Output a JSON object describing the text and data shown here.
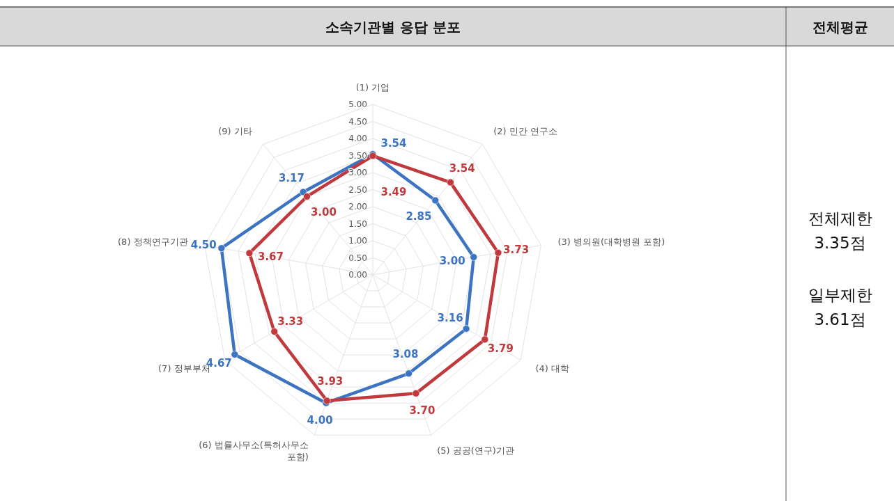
{
  "chart_data": {
    "type": "radar",
    "title": "소속기관별 응답 분포",
    "categories": [
      "(1) 기업",
      "(2) 민간 연구소",
      "(3) 병의원(대학병원 포함)",
      "(4) 대학",
      "(5) 공공(연구)기관",
      "(6) 법률사무소(특허사무소 포함)",
      "(7) 정부부처",
      "(8) 정책연구기관",
      "(9) 기타"
    ],
    "series": [
      {
        "color": "#3c74c2",
        "values": [
          3.54,
          2.85,
          3.0,
          3.16,
          3.08,
          4.0,
          4.67,
          4.5,
          3.17
        ],
        "value_labels": [
          "3.54",
          "2.85",
          "3.00",
          "3.16",
          "3.08",
          "4.00",
          "4.67",
          "4.50",
          "3.17"
        ]
      },
      {
        "color": "#c0393d",
        "values": [
          3.49,
          3.54,
          3.73,
          3.79,
          3.7,
          3.93,
          3.33,
          3.67,
          3.0
        ],
        "value_labels": [
          "3.49",
          "3.54",
          "3.73",
          "3.79",
          "3.70",
          "3.93",
          "3.33",
          "3.67",
          "3.00"
        ]
      }
    ],
    "ylim": [
      0,
      5
    ],
    "yticks": [
      {
        "value": 0,
        "label": "0.00"
      },
      {
        "value": 0.5,
        "label": "0.50"
      },
      {
        "value": 1,
        "label": "1.00"
      },
      {
        "value": 1.5,
        "label": "1.50"
      },
      {
        "value": 2,
        "label": "2.00"
      },
      {
        "value": 2.5,
        "label": "2.50"
      },
      {
        "value": 3,
        "label": "3.00"
      },
      {
        "value": 3.5,
        "label": "3.50"
      },
      {
        "value": 4,
        "label": "4.00"
      },
      {
        "value": 4.5,
        "label": "4.50"
      },
      {
        "value": 5,
        "label": "5.00"
      }
    ],
    "grid": true,
    "marker": "circle",
    "annotations": [
      "전체평균",
      "전체제한\n3.35점",
      "일부제한\n3.61점"
    ]
  }
}
